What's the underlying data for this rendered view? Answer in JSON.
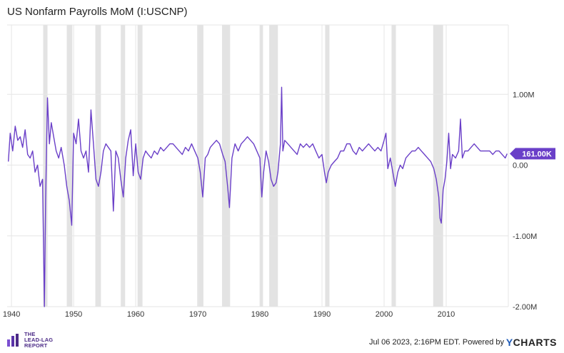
{
  "title": "US Nonfarm Payrolls MoM (I:USCNP)",
  "footer": {
    "timestamp": "Jul 06 2023, 2:16PM EDT. Powered by",
    "brand_y": "Y",
    "brand_rest": "CHARTS"
  },
  "logo": {
    "line1": "THE",
    "line2": "LEAD-LAG",
    "line3": "REPORT"
  },
  "colors": {
    "series": "#6a3fc8",
    "recession": "#e3e3e3",
    "grid": "#e6e6e6",
    "label_bg": "#6a3fc8"
  },
  "chart_data": {
    "type": "line",
    "title": "US Nonfarm Payrolls MoM (I:USCNP)",
    "x_ticks": [
      "1940",
      "1950",
      "1960",
      "1970",
      "1980",
      "1990",
      "2000",
      "2010"
    ],
    "y_ticks": [
      "1.00M",
      "0.00",
      "-1.00M",
      "-2.00M"
    ],
    "y_tick_values": [
      1.0,
      0.0,
      -1.0,
      -2.0
    ],
    "xlim": [
      1939.3,
      2020.0
    ],
    "ylim": [
      -2.0,
      1.98
    ],
    "last_value_label": "161.00K",
    "last_value": 0.161,
    "recessions": [
      [
        1945.1,
        1945.8
      ],
      [
        1948.9,
        1949.8
      ],
      [
        1953.5,
        1954.4
      ],
      [
        1957.6,
        1958.3
      ],
      [
        1960.3,
        1961.1
      ],
      [
        1969.9,
        1970.9
      ],
      [
        1973.9,
        1975.2
      ],
      [
        1980.0,
        1980.5
      ],
      [
        1981.5,
        1982.9
      ],
      [
        1990.5,
        1991.2
      ],
      [
        2001.2,
        2001.9
      ],
      [
        2007.9,
        2009.5
      ]
    ],
    "series": [
      {
        "values": [
          [
            1939.5,
            0.05
          ],
          [
            1939.8,
            0.45
          ],
          [
            1940.2,
            0.2
          ],
          [
            1940.6,
            0.55
          ],
          [
            1941.0,
            0.35
          ],
          [
            1941.4,
            0.4
          ],
          [
            1941.8,
            0.25
          ],
          [
            1942.2,
            0.5
          ],
          [
            1942.6,
            0.15
          ],
          [
            1943.0,
            0.1
          ],
          [
            1943.4,
            0.2
          ],
          [
            1943.8,
            -0.1
          ],
          [
            1944.2,
            0.0
          ],
          [
            1944.6,
            -0.3
          ],
          [
            1945.0,
            -0.2
          ],
          [
            1945.3,
            -2.0
          ],
          [
            1945.5,
            -0.5
          ],
          [
            1945.8,
            0.95
          ],
          [
            1946.1,
            0.3
          ],
          [
            1946.4,
            0.6
          ],
          [
            1946.8,
            0.4
          ],
          [
            1947.2,
            0.2
          ],
          [
            1947.6,
            0.1
          ],
          [
            1948.0,
            0.25
          ],
          [
            1948.5,
            0.0
          ],
          [
            1948.9,
            -0.3
          ],
          [
            1949.3,
            -0.5
          ],
          [
            1949.7,
            -0.85
          ],
          [
            1950.0,
            0.45
          ],
          [
            1950.4,
            0.3
          ],
          [
            1950.8,
            0.65
          ],
          [
            1951.2,
            0.2
          ],
          [
            1951.6,
            0.1
          ],
          [
            1952.0,
            0.2
          ],
          [
            1952.4,
            -0.1
          ],
          [
            1952.8,
            0.78
          ],
          [
            1953.2,
            0.3
          ],
          [
            1953.6,
            -0.2
          ],
          [
            1954.0,
            -0.3
          ],
          [
            1954.4,
            -0.1
          ],
          [
            1954.8,
            0.2
          ],
          [
            1955.2,
            0.3
          ],
          [
            1955.6,
            0.25
          ],
          [
            1956.0,
            0.2
          ],
          [
            1956.4,
            -0.65
          ],
          [
            1956.8,
            0.2
          ],
          [
            1957.2,
            0.1
          ],
          [
            1957.6,
            -0.2
          ],
          [
            1958.0,
            -0.45
          ],
          [
            1958.4,
            0.1
          ],
          [
            1958.8,
            0.35
          ],
          [
            1959.2,
            0.5
          ],
          [
            1959.6,
            -0.15
          ],
          [
            1960.0,
            0.3
          ],
          [
            1960.4,
            -0.1
          ],
          [
            1960.8,
            -0.2
          ],
          [
            1961.2,
            0.1
          ],
          [
            1961.6,
            0.2
          ],
          [
            1962.0,
            0.15
          ],
          [
            1962.5,
            0.1
          ],
          [
            1963.0,
            0.2
          ],
          [
            1963.5,
            0.15
          ],
          [
            1964.0,
            0.25
          ],
          [
            1964.5,
            0.2
          ],
          [
            1965.0,
            0.25
          ],
          [
            1965.5,
            0.3
          ],
          [
            1966.0,
            0.3
          ],
          [
            1966.5,
            0.25
          ],
          [
            1967.0,
            0.2
          ],
          [
            1967.5,
            0.15
          ],
          [
            1968.0,
            0.25
          ],
          [
            1968.5,
            0.2
          ],
          [
            1969.0,
            0.3
          ],
          [
            1969.5,
            0.2
          ],
          [
            1970.0,
            0.1
          ],
          [
            1970.4,
            -0.1
          ],
          [
            1970.8,
            -0.45
          ],
          [
            1971.2,
            0.1
          ],
          [
            1971.6,
            0.15
          ],
          [
            1972.0,
            0.25
          ],
          [
            1972.5,
            0.3
          ],
          [
            1973.0,
            0.35
          ],
          [
            1973.5,
            0.3
          ],
          [
            1974.0,
            0.15
          ],
          [
            1974.4,
            0.05
          ],
          [
            1974.8,
            -0.3
          ],
          [
            1975.1,
            -0.6
          ],
          [
            1975.5,
            0.1
          ],
          [
            1976.0,
            0.3
          ],
          [
            1976.5,
            0.2
          ],
          [
            1977.0,
            0.3
          ],
          [
            1977.5,
            0.35
          ],
          [
            1978.0,
            0.4
          ],
          [
            1978.5,
            0.35
          ],
          [
            1979.0,
            0.3
          ],
          [
            1979.5,
            0.2
          ],
          [
            1980.0,
            0.1
          ],
          [
            1980.3,
            -0.45
          ],
          [
            1980.6,
            -0.1
          ],
          [
            1981.0,
            0.2
          ],
          [
            1981.4,
            0.05
          ],
          [
            1981.8,
            -0.2
          ],
          [
            1982.2,
            -0.3
          ],
          [
            1982.6,
            -0.25
          ],
          [
            1982.9,
            -0.1
          ],
          [
            1983.3,
            0.3
          ],
          [
            1983.5,
            1.1
          ],
          [
            1983.7,
            0.2
          ],
          [
            1984.0,
            0.35
          ],
          [
            1984.5,
            0.3
          ],
          [
            1985.0,
            0.25
          ],
          [
            1985.5,
            0.2
          ],
          [
            1986.0,
            0.15
          ],
          [
            1986.5,
            0.3
          ],
          [
            1987.0,
            0.25
          ],
          [
            1987.5,
            0.3
          ],
          [
            1988.0,
            0.25
          ],
          [
            1988.5,
            0.3
          ],
          [
            1989.0,
            0.2
          ],
          [
            1989.5,
            0.1
          ],
          [
            1990.0,
            0.15
          ],
          [
            1990.4,
            -0.1
          ],
          [
            1990.7,
            -0.25
          ],
          [
            1991.0,
            -0.1
          ],
          [
            1991.5,
            0.0
          ],
          [
            1992.0,
            0.05
          ],
          [
            1992.5,
            0.1
          ],
          [
            1993.0,
            0.2
          ],
          [
            1993.5,
            0.2
          ],
          [
            1994.0,
            0.3
          ],
          [
            1994.5,
            0.3
          ],
          [
            1995.0,
            0.2
          ],
          [
            1995.5,
            0.15
          ],
          [
            1996.0,
            0.25
          ],
          [
            1996.5,
            0.2
          ],
          [
            1997.0,
            0.25
          ],
          [
            1997.5,
            0.3
          ],
          [
            1998.0,
            0.25
          ],
          [
            1998.5,
            0.2
          ],
          [
            1999.0,
            0.25
          ],
          [
            1999.5,
            0.2
          ],
          [
            2000.0,
            0.35
          ],
          [
            2000.3,
            0.45
          ],
          [
            2000.6,
            -0.05
          ],
          [
            2001.0,
            0.1
          ],
          [
            2001.4,
            -0.1
          ],
          [
            2001.8,
            -0.3
          ],
          [
            2002.2,
            -0.1
          ],
          [
            2002.6,
            0.0
          ],
          [
            2003.0,
            -0.05
          ],
          [
            2003.5,
            0.1
          ],
          [
            2004.0,
            0.15
          ],
          [
            2004.5,
            0.2
          ],
          [
            2005.0,
            0.2
          ],
          [
            2005.5,
            0.25
          ],
          [
            2006.0,
            0.2
          ],
          [
            2006.5,
            0.15
          ],
          [
            2007.0,
            0.1
          ],
          [
            2007.5,
            0.05
          ],
          [
            2008.0,
            -0.05
          ],
          [
            2008.4,
            -0.2
          ],
          [
            2008.8,
            -0.45
          ],
          [
            2009.0,
            -0.75
          ],
          [
            2009.2,
            -0.82
          ],
          [
            2009.5,
            -0.35
          ],
          [
            2009.8,
            -0.2
          ],
          [
            2010.1,
            0.05
          ],
          [
            2010.4,
            0.45
          ],
          [
            2010.7,
            -0.05
          ],
          [
            2011.0,
            0.15
          ],
          [
            2011.5,
            0.1
          ],
          [
            2012.0,
            0.2
          ],
          [
            2012.3,
            0.65
          ],
          [
            2012.6,
            0.1
          ],
          [
            2013.0,
            0.2
          ],
          [
            2013.5,
            0.2
          ],
          [
            2014.0,
            0.25
          ],
          [
            2014.5,
            0.3
          ],
          [
            2015.0,
            0.25
          ],
          [
            2015.5,
            0.2
          ],
          [
            2016.0,
            0.2
          ],
          [
            2016.5,
            0.2
          ],
          [
            2017.0,
            0.2
          ],
          [
            2017.5,
            0.15
          ],
          [
            2018.0,
            0.2
          ],
          [
            2018.5,
            0.2
          ],
          [
            2019.0,
            0.15
          ],
          [
            2019.5,
            0.1
          ],
          [
            2019.8,
            0.161
          ]
        ]
      }
    ]
  }
}
